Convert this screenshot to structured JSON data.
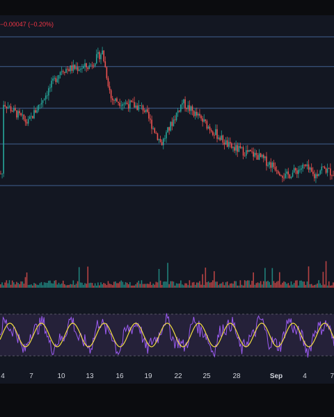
{
  "header": {
    "price_change": "−0.00047 (−0.20%)"
  },
  "colors": {
    "background": "#131722",
    "topbar": "#0b0c0f",
    "up": "#26a69a",
    "down": "#ef5350",
    "change_text": "#f23645",
    "h_line": "#4a6fa5",
    "oscillator_fast": "#9c5cf2",
    "oscillator_slow": "#f5e042",
    "oscillator_band": "#2a2440"
  },
  "x_axis": {
    "labels": [
      "4",
      "7",
      "10",
      "13",
      "16",
      "19",
      "22",
      "25",
      "28",
      "Sep",
      "4",
      "7"
    ],
    "bold_label": "Sep"
  },
  "chart_data": {
    "type": "line",
    "title": "",
    "xlabel": "",
    "ylabel": "",
    "grid": false,
    "panes": [
      "price",
      "volume",
      "oscillator"
    ],
    "price_trend": {
      "x": [
        "4",
        "7",
        "10",
        "13",
        "14",
        "16",
        "19",
        "22",
        "23",
        "25",
        "28",
        "31",
        "Sep",
        "3",
        "4",
        "5",
        "6",
        "7"
      ],
      "y": [
        0.56,
        0.42,
        0.78,
        0.8,
        0.9,
        0.58,
        0.52,
        0.28,
        0.56,
        0.44,
        0.26,
        0.2,
        0.12,
        0.06,
        0.13,
        0.06,
        0.12,
        0.08
      ]
    },
    "horizontal_levels": [
      0.0,
      0.28,
      0.52,
      0.8,
      1.0
    ]
  }
}
